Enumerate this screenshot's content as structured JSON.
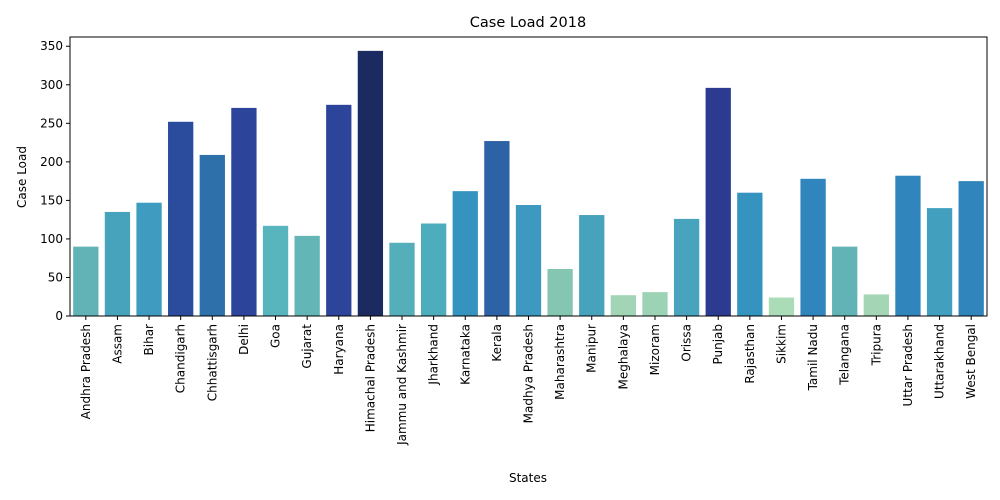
{
  "chart_data": {
    "type": "bar",
    "title": "Case Load 2018",
    "xlabel": "States",
    "ylabel": "Case Load",
    "ylim": [
      0,
      362
    ],
    "yticks": [
      0,
      50,
      100,
      150,
      200,
      250,
      300,
      350
    ],
    "grid": false,
    "legend": "none",
    "categories": [
      "Andhra Pradesh",
      "Assam",
      "Bihar",
      "Chandigarh",
      "Chhattisgarh",
      "Delhi",
      "Goa",
      "Gujarat",
      "Haryana",
      "Himachal Pradesh",
      "Jammu and Kashmir",
      "Jharkhand",
      "Karnataka",
      "Kerala",
      "Madhya Pradesh",
      "Maharashtra",
      "Manipur",
      "Meghalaya",
      "Mizoram",
      "Orissa",
      "Punjab",
      "Rajasthan",
      "Sikkim",
      "Tamil Nadu",
      "Telangana",
      "Tripura",
      "Uttar Pradesh",
      "Uttarakhand",
      "West Bengal"
    ],
    "values": [
      90,
      135,
      147,
      252,
      209,
      270,
      117,
      104,
      274,
      344,
      95,
      120,
      162,
      227,
      144,
      61,
      131,
      27,
      31,
      126,
      296,
      160,
      24,
      178,
      90,
      28,
      182,
      140,
      175
    ],
    "colors": [
      "#62b3b6",
      "#47a3bc",
      "#3f9bbf",
      "#2b4b9c",
      "#2e70aa",
      "#2c449a",
      "#58b4bd",
      "#64b5b6",
      "#2c449a",
      "#1b2a60",
      "#54afba",
      "#4eadbc",
      "#3593c0",
      "#2e62a7",
      "#3d99c0",
      "#84c6b2",
      "#47a3bc",
      "#a2d5b5",
      "#9cd3b4",
      "#48a4bd",
      "#2c3a8f",
      "#3593c0",
      "#aadcb7",
      "#2f85bc",
      "#62b3b6",
      "#a4d6b6",
      "#2f85bc",
      "#42a0be",
      "#2f85bc"
    ]
  }
}
